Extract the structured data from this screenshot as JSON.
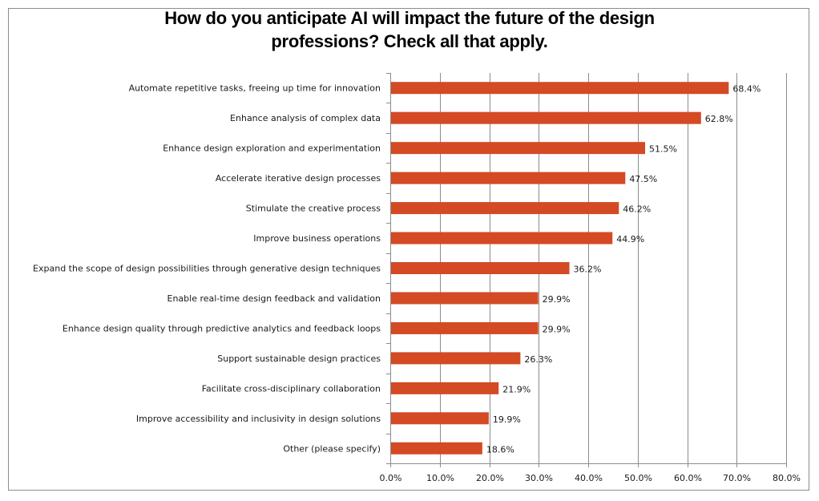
{
  "chart_data": {
    "type": "bar",
    "orientation": "horizontal",
    "title_lines": [
      "How do you anticipate AI will impact the future of the design",
      "professions? Check all that apply."
    ],
    "categories": [
      "Automate repetitive tasks, freeing up time for innovation",
      "Enhance analysis of complex data",
      "Enhance design exploration and experimentation",
      "Accelerate iterative design processes",
      "Stimulate the creative process",
      "Improve business operations",
      "Expand the scope of design possibilities through generative design techniques",
      "Enable real-time design feedback and validation",
      "Enhance design quality through predictive analytics and feedback loops",
      "Support sustainable design practices",
      "Facilitate cross-disciplinary collaboration",
      "Improve accessibility and inclusivity in design solutions",
      "Other (please specify)"
    ],
    "values": [
      68.4,
      62.8,
      51.5,
      47.5,
      46.2,
      44.9,
      36.2,
      29.9,
      29.9,
      26.3,
      21.9,
      19.9,
      18.6
    ],
    "data_labels": [
      "68.4%",
      "62.8%",
      "51.5%",
      "47.5%",
      "46.2%",
      "44.9%",
      "36.2%",
      "29.9%",
      "29.9%",
      "26.3%",
      "21.9%",
      "19.9%",
      "18.6%"
    ],
    "xlim": [
      0,
      80
    ],
    "xticks": [
      0,
      10,
      20,
      30,
      40,
      50,
      60,
      70,
      80
    ],
    "xtick_labels": [
      "0.0%",
      "10.0%",
      "20.0%",
      "30.0%",
      "40.0%",
      "50.0%",
      "60.0%",
      "70.0%",
      "80.0%"
    ],
    "xlabel": "",
    "ylabel": "",
    "grid": true,
    "bar_color": "#d34a24",
    "grid_color": "#8c8c8c",
    "text_color": "#1a1a1a"
  }
}
